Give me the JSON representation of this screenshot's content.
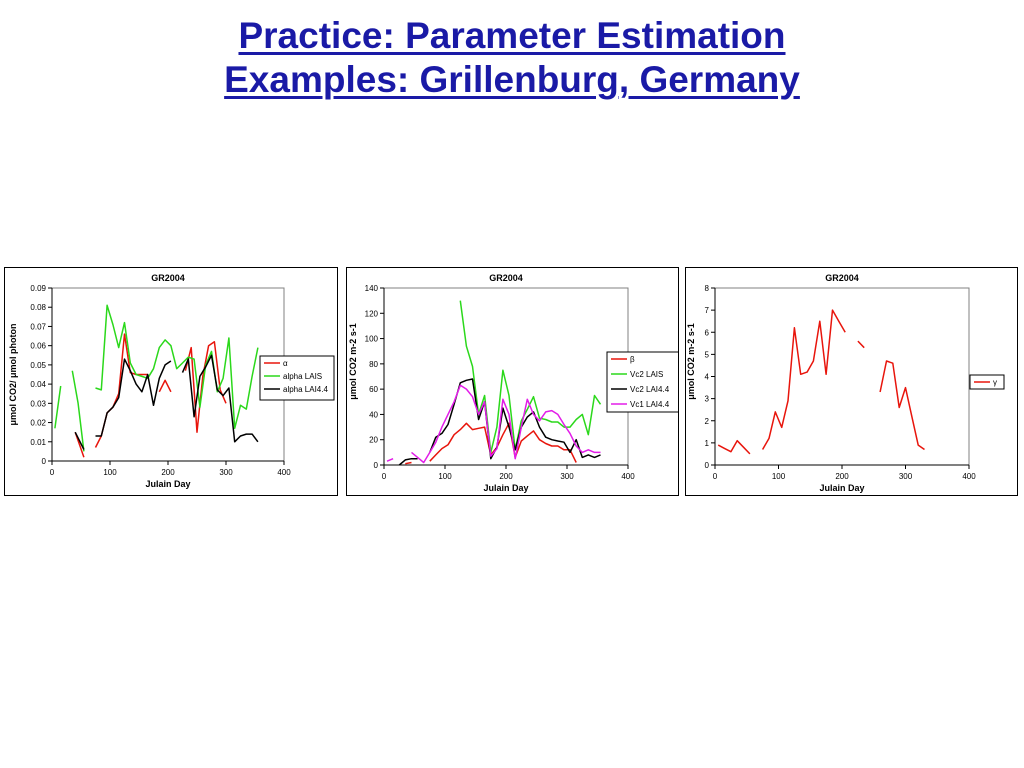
{
  "slide": {
    "title_line1": "Practice: Parameter Estimation",
    "title_line2": "Examples: Grillenburg, Germany"
  },
  "chart_data": [
    {
      "type": "line",
      "title": "GR2004",
      "xlabel": "Julain Day",
      "ylabel": "μmol CO2/ μmol photon",
      "xlim": [
        0,
        400
      ],
      "ylim": [
        0,
        0.09
      ],
      "xticks": [
        0,
        100,
        200,
        300,
        400
      ],
      "yticks": [
        "0",
        "0.01",
        "0.02",
        "0.03",
        "0.04",
        "0.05",
        "0.06",
        "0.07",
        "0.08",
        "0.09"
      ],
      "grid": false,
      "legend": "right",
      "series": [
        {
          "name": "α",
          "color": "#e8150c",
          "x": [
            40,
            55,
            null,
            75,
            85,
            95,
            105,
            115,
            125,
            135,
            145,
            155,
            165,
            null,
            185,
            195,
            205,
            null,
            230,
            240,
            250,
            260,
            270,
            280,
            290,
            300,
            null
          ],
          "y": [
            0.015,
            0.002,
            null,
            0.007,
            0.013,
            0.025,
            0.028,
            0.035,
            0.066,
            0.046,
            0.045,
            0.045,
            0.045,
            null,
            0.036,
            0.042,
            0.036,
            null,
            0.047,
            0.059,
            0.015,
            0.044,
            0.06,
            0.062,
            0.037,
            0.03,
            null
          ]
        },
        {
          "name": "alpha LAIS",
          "color": "#2bd81b",
          "x": [
            5,
            15,
            null,
            35,
            45,
            55,
            null,
            75,
            85,
            95,
            105,
            115,
            125,
            135,
            145,
            155,
            165,
            175,
            185,
            195,
            205,
            215,
            225,
            235,
            245,
            255,
            265,
            275,
            285,
            295,
            305,
            315,
            325,
            335,
            345,
            355
          ],
          "y": [
            0.017,
            0.039,
            null,
            0.047,
            0.03,
            0.005,
            null,
            0.038,
            0.037,
            0.081,
            0.071,
            0.059,
            0.072,
            0.051,
            0.045,
            0.044,
            0.043,
            0.048,
            0.059,
            0.063,
            0.06,
            0.048,
            0.051,
            0.054,
            0.053,
            0.028,
            0.05,
            0.057,
            0.036,
            0.043,
            0.064,
            0.017,
            0.029,
            0.027,
            0.044,
            0.059
          ]
        },
        {
          "name": "alpha LAI4.4",
          "color": "#000000",
          "x": [
            40,
            55,
            null,
            75,
            85,
            95,
            105,
            115,
            125,
            135,
            145,
            155,
            165,
            175,
            185,
            195,
            205,
            null,
            225,
            235,
            245,
            255,
            265,
            275,
            285,
            295,
            305,
            315,
            325,
            335,
            345,
            355
          ],
          "y": [
            0.015,
            0.006,
            null,
            0.013,
            0.013,
            0.025,
            0.028,
            0.033,
            0.053,
            0.047,
            0.04,
            0.036,
            0.045,
            0.029,
            0.043,
            0.05,
            0.052,
            null,
            0.046,
            0.053,
            0.023,
            0.044,
            0.049,
            0.055,
            0.037,
            0.034,
            0.038,
            0.01,
            0.013,
            0.014,
            0.014,
            0.01
          ]
        }
      ]
    },
    {
      "type": "line",
      "title": "GR2004",
      "xlabel": "Julain Day",
      "ylabel": "μmol CO2 m-2 s-1",
      "xlim": [
        0,
        400
      ],
      "ylim": [
        0,
        140
      ],
      "xticks": [
        0,
        100,
        200,
        300,
        400
      ],
      "yticks": [
        "0",
        "20",
        "40",
        "60",
        "80",
        "100",
        "120",
        "140"
      ],
      "grid": false,
      "legend": "right",
      "series": [
        {
          "name": "β",
          "color": "#e8150c",
          "x": [
            35,
            45,
            null,
            75,
            85,
            95,
            105,
            115,
            125,
            135,
            145,
            155,
            165,
            175,
            185,
            195,
            205,
            215,
            225,
            235,
            245,
            255,
            265,
            275,
            285,
            295,
            305,
            315
          ],
          "y": [
            1,
            2,
            null,
            3,
            8,
            13,
            16,
            24,
            28,
            33,
            28,
            29,
            30,
            8,
            14,
            24,
            33,
            6,
            19,
            23,
            27,
            20,
            17,
            15,
            15,
            12,
            12,
            2
          ]
        },
        {
          "name": "Vc2 LAIS",
          "color": "#2bd81b",
          "x": [
            125,
            135,
            145,
            155,
            165,
            175,
            185,
            195,
            205,
            215,
            225,
            235,
            245,
            255,
            265,
            275,
            285,
            295,
            305,
            315,
            325,
            335,
            345,
            355
          ],
          "y": [
            130,
            94,
            78,
            40,
            55,
            10,
            30,
            75,
            55,
            12,
            35,
            44,
            54,
            37,
            36,
            34,
            34,
            30,
            30,
            36,
            40,
            24,
            55,
            48
          ]
        },
        {
          "name": "Vc2 LAI4.4",
          "color": "#000000",
          "x": [
            25,
            35,
            45,
            55,
            null,
            75,
            85,
            95,
            105,
            115,
            125,
            135,
            145,
            155,
            165,
            175,
            185,
            195,
            205,
            215,
            225,
            235,
            245,
            255,
            265,
            275,
            285,
            295,
            305,
            315,
            325,
            335,
            345,
            355
          ],
          "y": [
            0,
            4,
            5,
            5,
            null,
            10,
            22,
            25,
            32,
            48,
            65,
            67,
            68,
            36,
            50,
            5,
            14,
            45,
            30,
            12,
            30,
            38,
            42,
            30,
            22,
            20,
            19,
            18,
            10,
            20,
            6,
            8,
            6,
            8
          ]
        },
        {
          "name": "Vc1 LAI4.4",
          "color": "#e21de8",
          "x": [
            5,
            15,
            null,
            45,
            55,
            65,
            75,
            85,
            95,
            105,
            115,
            125,
            135,
            145,
            155,
            165,
            175,
            185,
            195,
            205,
            215,
            225,
            235,
            245,
            255,
            265,
            275,
            285,
            295,
            305,
            315,
            325,
            335,
            345,
            355
          ],
          "y": [
            3,
            5,
            null,
            10,
            6,
            2,
            10,
            18,
            30,
            40,
            50,
            63,
            60,
            54,
            40,
            50,
            7,
            13,
            52,
            40,
            5,
            30,
            52,
            40,
            35,
            42,
            43,
            40,
            32,
            25,
            15,
            10,
            12,
            10,
            10
          ]
        }
      ]
    },
    {
      "type": "line",
      "title": "GR2004",
      "xlabel": "Julain Day",
      "ylabel": "μmol CO2 m-2 s-1",
      "xlim": [
        0,
        400
      ],
      "ylim": [
        0,
        8
      ],
      "xticks": [
        0,
        100,
        200,
        300,
        400
      ],
      "yticks": [
        "0",
        "1",
        "2",
        "3",
        "4",
        "5",
        "6",
        "7",
        "8"
      ],
      "grid": false,
      "legend": "right",
      "series": [
        {
          "name": "γ",
          "color": "#e8150c",
          "x": [
            5,
            15,
            25,
            35,
            45,
            55,
            null,
            75,
            85,
            95,
            105,
            115,
            125,
            135,
            145,
            155,
            165,
            175,
            185,
            195,
            205,
            null,
            225,
            235,
            null,
            260,
            270,
            280,
            290,
            300,
            310,
            320,
            330
          ],
          "y": [
            0.9,
            0.75,
            0.6,
            1.1,
            0.8,
            0.5,
            null,
            0.7,
            1.2,
            2.4,
            1.7,
            2.9,
            6.2,
            4.1,
            4.2,
            4.7,
            6.5,
            4.1,
            7.0,
            6.5,
            6.0,
            null,
            5.6,
            5.3,
            null,
            3.3,
            4.7,
            4.6,
            2.6,
            3.5,
            2.2,
            0.9,
            0.7
          ]
        }
      ]
    }
  ]
}
